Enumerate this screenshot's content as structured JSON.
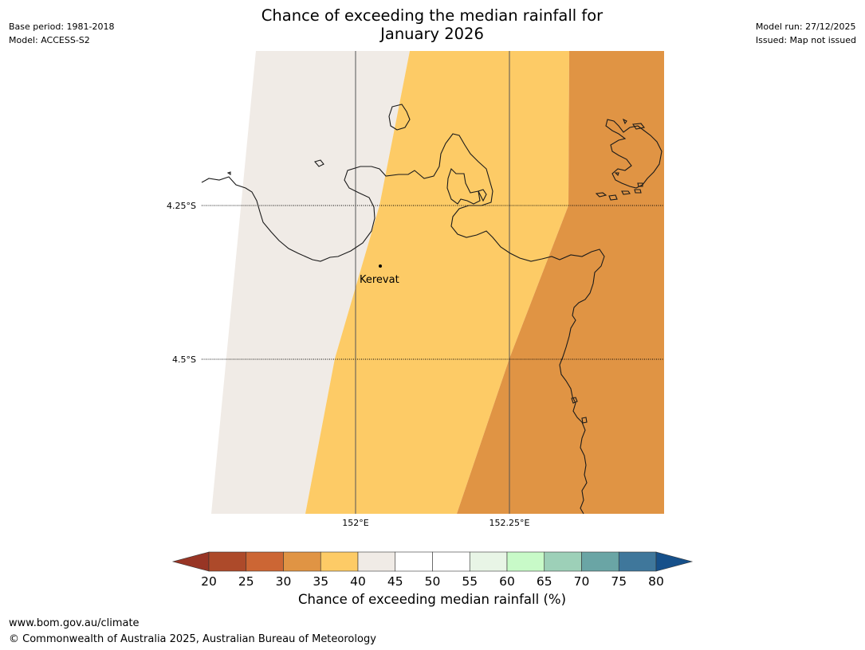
{
  "title": {
    "line1": "Chance of exceeding the median rainfall for",
    "line2": "January 2026"
  },
  "meta_left": {
    "base_period": "Base period: 1981-2018",
    "model": "Model: ACCESS-S2"
  },
  "meta_right": {
    "model_run": "Model run: 27/12/2025",
    "issued": "Issued: Map not issued"
  },
  "map": {
    "place_label": "Kerevat",
    "lat_labels": [
      "4.25°S",
      "4.5°S"
    ],
    "lon_labels": [
      "152°E",
      "152.25°E"
    ],
    "zone_colors": {
      "35_40": "#e09444",
      "40_45": "#fdcb66",
      "45_50": "#f0ebe6"
    }
  },
  "colorbar": {
    "label": "Chance of exceeding median rainfall (%)",
    "ticks": [
      "20",
      "25",
      "30",
      "35",
      "40",
      "45",
      "50",
      "55",
      "60",
      "65",
      "70",
      "75",
      "80"
    ],
    "colors": [
      "#ad4a2a",
      "#cc6634",
      "#e09444",
      "#fdcb66",
      "#f0ebe6",
      "#ffffff",
      "#ffffff",
      "#e8f5e6",
      "#c8fac8",
      "#9dd0b8",
      "#6aa5a5",
      "#3f779b"
    ],
    "extend_low_color": "#983525",
    "extend_high_color": "#16508a"
  },
  "footer": {
    "url": "www.bom.gov.au/climate",
    "copyright": "© Commonwealth of Australia 2025, Australian Bureau of Meteorology"
  }
}
